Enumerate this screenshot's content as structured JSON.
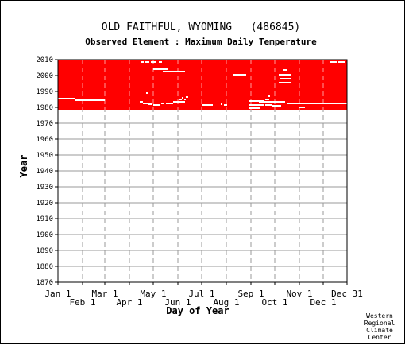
{
  "chart_data": {
    "type": "heatmap",
    "title": "OLD FAITHFUL, WYOMING   (486845)",
    "subtitle": "Observed Element : Maximum Daily Temperature",
    "xlabel": "Day of Year",
    "ylabel": "Year",
    "xlim": [
      1,
      365
    ],
    "ylim": [
      1870,
      2010
    ],
    "y_ticks": [
      1870,
      1880,
      1890,
      1900,
      1910,
      1920,
      1930,
      1940,
      1950,
      1960,
      1970,
      1980,
      1990,
      2000,
      2010
    ],
    "x_ticks_top": [
      {
        "label": "Jan 1",
        "day": 1
      },
      {
        "label": "Mar 1",
        "day": 60
      },
      {
        "label": "May 1",
        "day": 121
      },
      {
        "label": "Jul 1",
        "day": 182
      },
      {
        "label": "Sep 1",
        "day": 244
      },
      {
        "label": "Nov 1",
        "day": 305
      },
      {
        "label": "Dec 31",
        "day": 365
      }
    ],
    "x_ticks_bottom": [
      {
        "label": "Feb 1",
        "day": 32
      },
      {
        "label": "Apr 1",
        "day": 91
      },
      {
        "label": "Jun 1",
        "day": 152
      },
      {
        "label": "Aug 1",
        "day": 213
      },
      {
        "label": "Oct 1",
        "day": 274
      },
      {
        "label": "Dec 1",
        "day": 335
      }
    ],
    "grid": true,
    "colors": {
      "observed": "#ff0000",
      "missing": "#ffffff",
      "grid_major": "#999999"
    },
    "observed_blocks": [
      {
        "year_start": 1978,
        "year_end": 2010,
        "day_start": 1,
        "day_end": 365
      }
    ],
    "missing_segments": [
      {
        "year": 1985.5,
        "day_start": 1,
        "day_end": 23
      },
      {
        "year": 1984.5,
        "day_start": 23,
        "day_end": 60
      },
      {
        "year": 1983.5,
        "day_start": 104,
        "day_end": 108
      },
      {
        "year": 1982.5,
        "day_start": 108,
        "day_end": 114
      },
      {
        "year": 1982,
        "day_start": 114,
        "day_end": 120
      },
      {
        "year": 1981.5,
        "day_start": 121,
        "day_end": 129
      },
      {
        "year": 1982.5,
        "day_start": 131,
        "day_end": 135
      },
      {
        "year": 1982.5,
        "day_start": 137,
        "day_end": 146
      },
      {
        "year": 1983.5,
        "day_start": 146,
        "day_end": 161
      },
      {
        "year": 1985,
        "day_start": 154,
        "day_end": 157
      },
      {
        "year": 1986,
        "day_start": 157,
        "day_end": 159
      },
      {
        "year": 1985,
        "day_start": 160,
        "day_end": 162
      },
      {
        "year": 1986.5,
        "day_start": 162,
        "day_end": 165
      },
      {
        "year": 1981.5,
        "day_start": 182,
        "day_end": 196
      },
      {
        "year": 1982,
        "day_start": 206,
        "day_end": 208
      },
      {
        "year": 1981.5,
        "day_start": 210,
        "day_end": 214
      },
      {
        "year": 1984,
        "day_start": 242,
        "day_end": 260
      },
      {
        "year": 1981.5,
        "day_start": 242,
        "day_end": 260
      },
      {
        "year": 1979.5,
        "day_start": 242,
        "day_end": 255
      },
      {
        "year": 1981.5,
        "day_start": 262,
        "day_end": 270
      },
      {
        "year": 1981,
        "day_start": 270,
        "day_end": 282
      },
      {
        "year": 1983.5,
        "day_start": 254,
        "day_end": 287
      },
      {
        "year": 1985,
        "day_start": 262,
        "day_end": 267
      },
      {
        "year": 1980,
        "day_start": 305,
        "day_end": 312
      },
      {
        "year": 1982.5,
        "day_start": 290,
        "day_end": 365
      },
      {
        "year": 2004,
        "day_start": 121,
        "day_end": 139
      },
      {
        "year": 2002.5,
        "day_start": 133,
        "day_end": 161
      },
      {
        "year": 2000.5,
        "day_start": 222,
        "day_end": 238
      },
      {
        "year": 2000.5,
        "day_start": 279,
        "day_end": 295
      },
      {
        "year": 1998,
        "day_start": 280,
        "day_end": 295
      },
      {
        "year": 1995.5,
        "day_start": 279,
        "day_end": 295
      },
      {
        "year": 2003.5,
        "day_start": 285,
        "day_end": 289
      },
      {
        "year": 2008.5,
        "day_start": 105,
        "day_end": 109
      },
      {
        "year": 2008.5,
        "day_start": 111,
        "day_end": 116
      },
      {
        "year": 2008.5,
        "day_start": 118,
        "day_end": 125
      },
      {
        "year": 2008.5,
        "day_start": 128,
        "day_end": 132
      },
      {
        "year": 2008.5,
        "day_start": 343,
        "day_end": 352
      },
      {
        "year": 2008.5,
        "day_start": 354,
        "day_end": 362
      },
      {
        "year": 1989,
        "day_start": 112,
        "day_end": 114
      },
      {
        "year": 1987,
        "day_start": 266,
        "day_end": 268
      }
    ],
    "credit": [
      "Western",
      "Regional",
      "Climate",
      "Center"
    ]
  }
}
